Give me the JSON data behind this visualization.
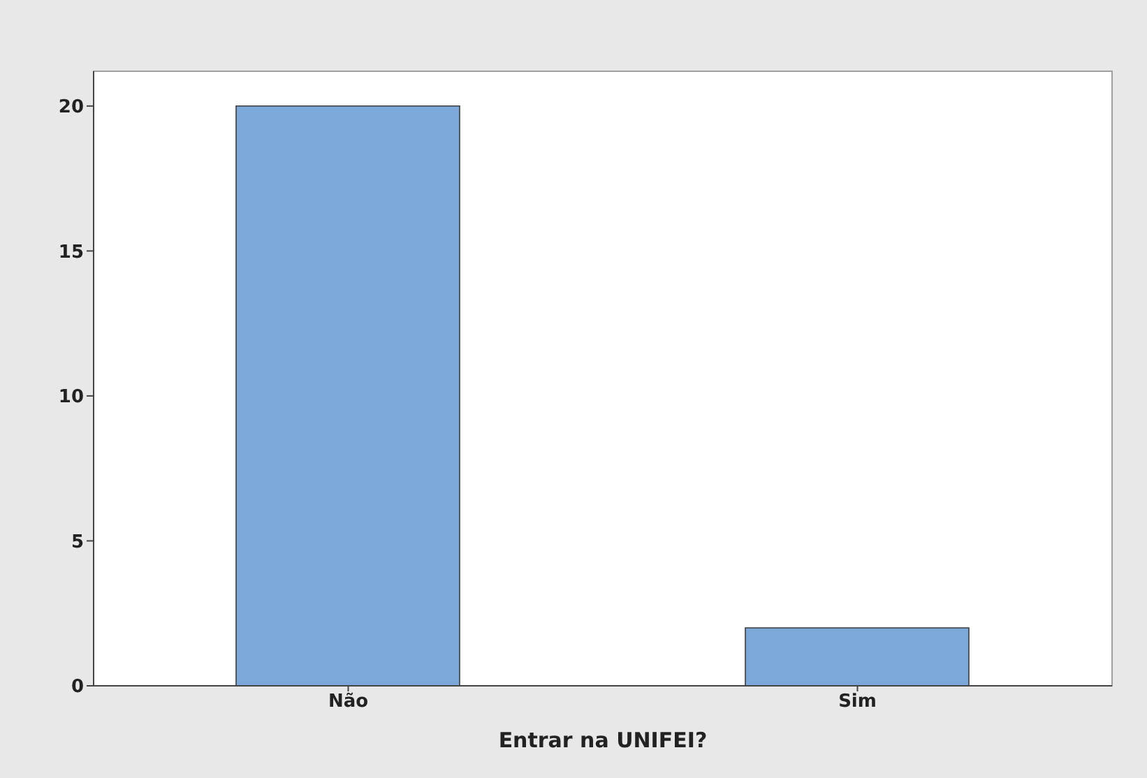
{
  "chart_data": {
    "type": "bar",
    "xlabel": "Entrar na UNIFEI?",
    "categories": [
      "Não",
      "Sim"
    ],
    "values": [
      20,
      2
    ],
    "color": "#7ba7d9",
    "ylim": [
      0,
      21.2
    ],
    "yticks": [
      0,
      5,
      10,
      15,
      20
    ]
  }
}
